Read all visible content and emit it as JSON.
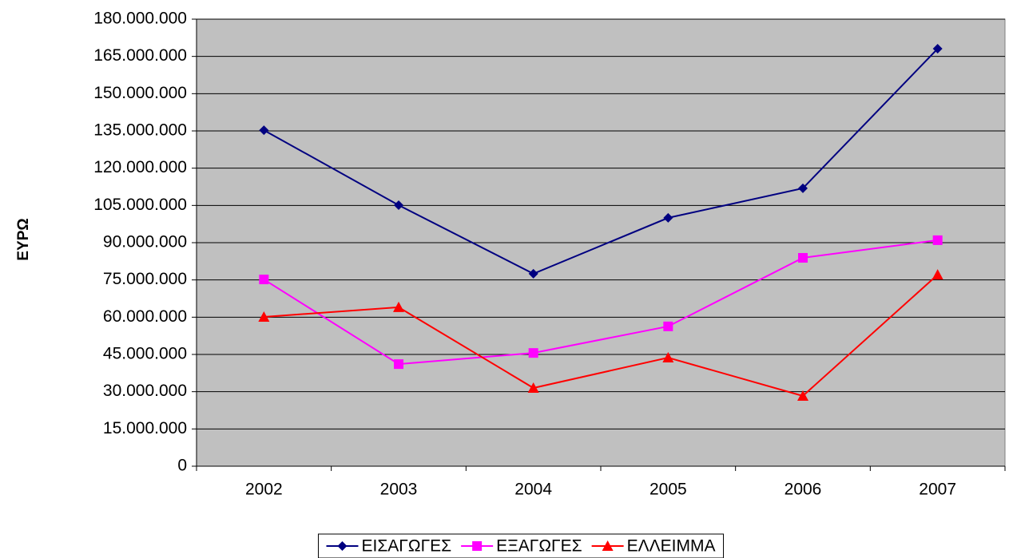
{
  "chart_data": {
    "type": "line",
    "y_label": "ΕΥΡΩ",
    "categories": [
      "2002",
      "2003",
      "2004",
      "2005",
      "2006",
      "2007"
    ],
    "series": [
      {
        "name": "ΕΙΣΑΓΩΓΕΣ",
        "color": "#000080",
        "marker": "diamond",
        "values": [
          135300000,
          105100000,
          77500000,
          100000000,
          111900000,
          168100000
        ]
      },
      {
        "name": "ΕΞΑΓΩΓΕΣ",
        "color": "#ff00ff",
        "marker": "square",
        "values": [
          75200000,
          41100000,
          45600000,
          56300000,
          83900000,
          91000000
        ]
      },
      {
        "name": "ΕΛΛΕΙΜΜΑ",
        "color": "#ff0000",
        "marker": "triangle",
        "values": [
          60100000,
          64000000,
          31500000,
          43700000,
          28300000,
          77100000
        ]
      }
    ],
    "ylim": [
      0,
      180000000
    ],
    "yticks": [
      0,
      {
        "value": 15000000,
        "label": "15.000.000"
      },
      {
        "value": 30000000,
        "label": "30.000.000"
      },
      {
        "value": 45000000,
        "label": "45.000.000"
      },
      {
        "value": 60000000,
        "label": "60.000.000"
      },
      {
        "value": 75000000,
        "label": "75.000.000"
      },
      {
        "value": 90000000,
        "label": "90.000.000"
      },
      {
        "value": 105000000,
        "label": "105.000.000"
      },
      {
        "value": 120000000,
        "label": "120.000.000"
      },
      {
        "value": 135000000,
        "label": "135.000.000"
      },
      {
        "value": 150000000,
        "label": "150.000.000"
      },
      {
        "value": 165000000,
        "label": "165.000.000"
      },
      {
        "value": 180000000,
        "label": "180.000.000"
      }
    ],
    "grid": true,
    "plot_background": "#c0c0c0",
    "legend": "bottom"
  }
}
